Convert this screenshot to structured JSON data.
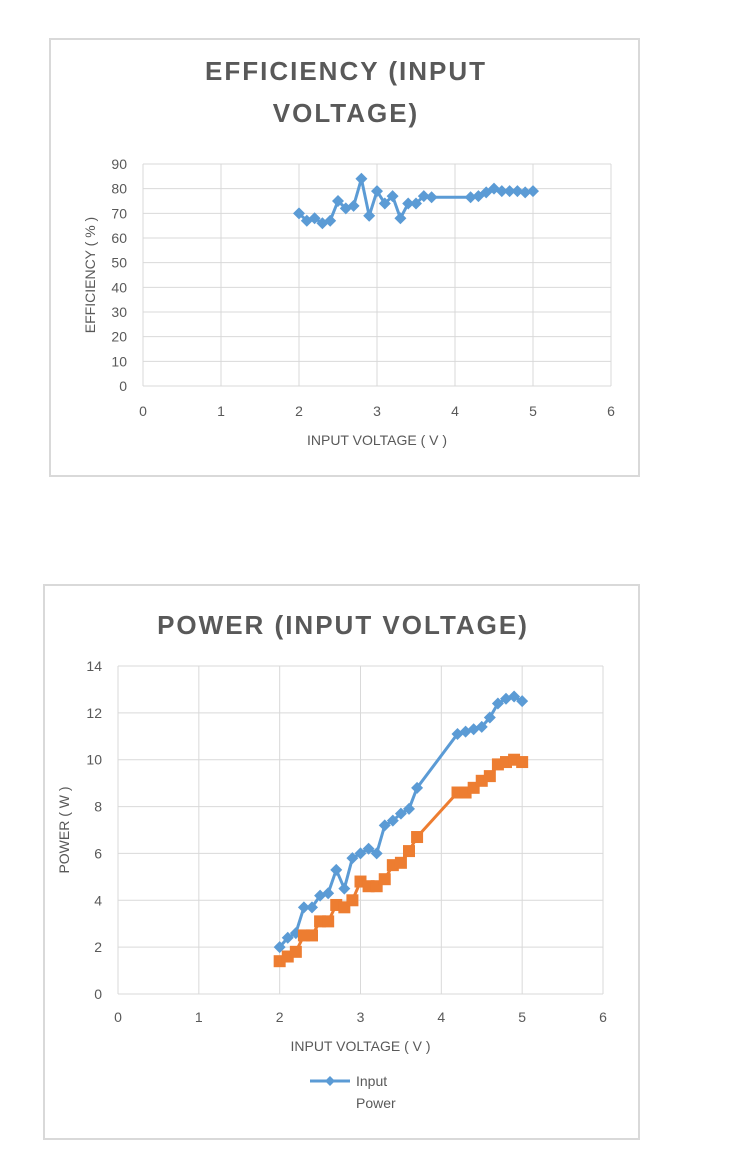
{
  "chart_data": [
    {
      "type": "line",
      "title_lines": [
        "EFFICIENCY (INPUT",
        "VOLTAGE)"
      ],
      "xlabel": "INPUT VOLTAGE ( V )",
      "ylabel": "EFFICIENCY ( % )",
      "xlim": [
        0,
        6
      ],
      "ylim": [
        0,
        90
      ],
      "xticks": [
        "0",
        "1",
        "2",
        "3",
        "4",
        "5",
        "6"
      ],
      "yticks": [
        "0",
        "10",
        "20",
        "30",
        "40",
        "50",
        "60",
        "70",
        "80",
        "90"
      ],
      "grid": true,
      "series": [
        {
          "color": "#5b9bd5",
          "marker": "diamond",
          "x": [
            2.0,
            2.1,
            2.2,
            2.3,
            2.4,
            2.5,
            2.6,
            2.7,
            2.8,
            2.9,
            3.0,
            3.1,
            3.2,
            3.3,
            3.4,
            3.5,
            3.6,
            3.7,
            4.2,
            4.3,
            4.4,
            4.5,
            4.6,
            4.7,
            4.8,
            4.9,
            5.0
          ],
          "y": [
            70,
            67,
            68,
            66,
            67,
            75,
            72,
            73,
            84,
            69,
            79,
            74,
            77,
            68,
            74,
            74,
            77,
            76.5,
            76.5,
            77,
            78.5,
            80,
            79,
            79,
            79,
            78.5,
            79
          ]
        }
      ]
    },
    {
      "type": "line",
      "title_lines": [
        "POWER (INPUT VOLTAGE)"
      ],
      "xlabel": "INPUT VOLTAGE ( V )",
      "ylabel": "POWER ( W )",
      "xlim": [
        0,
        6
      ],
      "ylim": [
        0,
        14
      ],
      "xticks": [
        "0",
        "1",
        "2",
        "3",
        "4",
        "5",
        "6"
      ],
      "yticks": [
        "0",
        "2",
        "4",
        "6",
        "8",
        "10",
        "12",
        "14"
      ],
      "grid": true,
      "legend_position": "bottom",
      "series": [
        {
          "name": "Input Power",
          "legend_lines": [
            "Input",
            "Power"
          ],
          "color": "#5b9bd5",
          "marker": "diamond",
          "x": [
            2.0,
            2.1,
            2.2,
            2.3,
            2.4,
            2.5,
            2.6,
            2.7,
            2.8,
            2.9,
            3.0,
            3.1,
            3.2,
            3.3,
            3.4,
            3.5,
            3.6,
            3.7,
            4.2,
            4.3,
            4.4,
            4.5,
            4.6,
            4.7,
            4.8,
            4.9,
            5.0
          ],
          "y": [
            2.0,
            2.4,
            2.6,
            3.7,
            3.7,
            4.2,
            4.3,
            5.3,
            4.5,
            5.8,
            6.0,
            6.2,
            6.0,
            7.2,
            7.4,
            7.7,
            7.9,
            8.8,
            11.1,
            11.2,
            11.3,
            11.4,
            11.8,
            12.4,
            12.6,
            12.7,
            12.5
          ]
        },
        {
          "color": "#ed7d31",
          "marker": "square",
          "x": [
            2.0,
            2.1,
            2.2,
            2.3,
            2.4,
            2.5,
            2.6,
            2.7,
            2.8,
            2.9,
            3.0,
            3.1,
            3.2,
            3.3,
            3.4,
            3.5,
            3.6,
            3.7,
            4.2,
            4.3,
            4.4,
            4.5,
            4.6,
            4.7,
            4.8,
            4.9,
            5.0
          ],
          "y": [
            1.4,
            1.6,
            1.8,
            2.5,
            2.5,
            3.1,
            3.1,
            3.8,
            3.7,
            4.0,
            4.8,
            4.6,
            4.6,
            4.9,
            5.5,
            5.6,
            6.1,
            6.7,
            8.6,
            8.6,
            8.8,
            9.1,
            9.3,
            9.8,
            9.9,
            10.0,
            9.9
          ]
        }
      ]
    }
  ]
}
